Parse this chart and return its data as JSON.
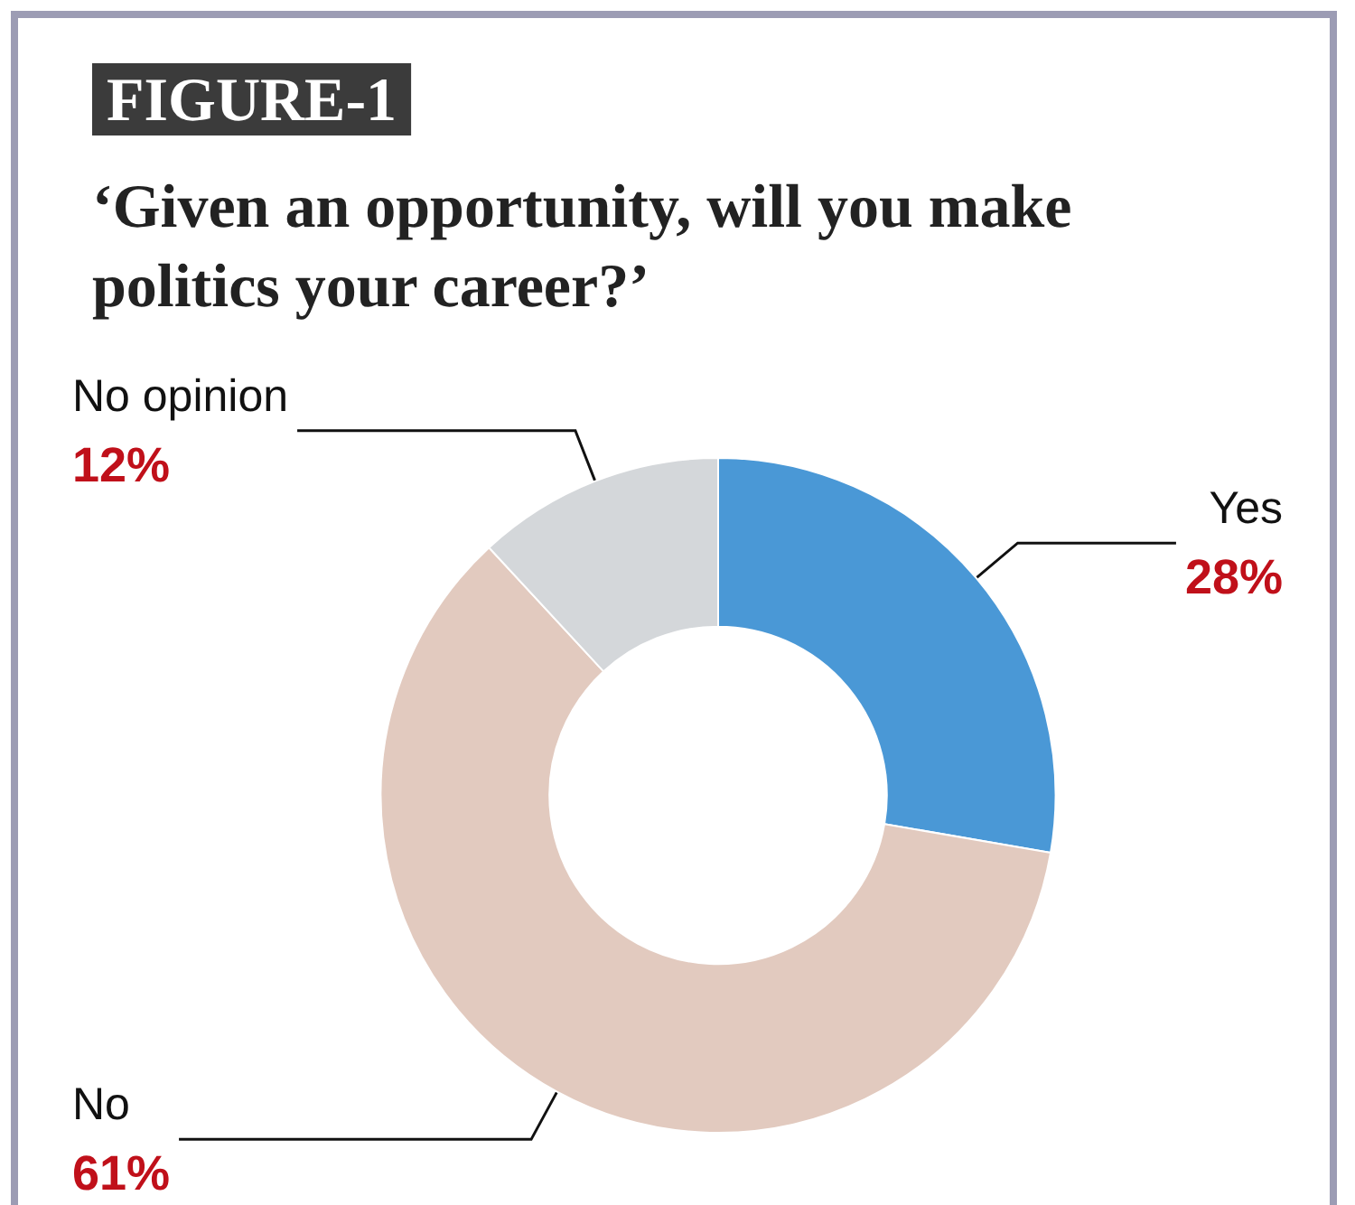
{
  "chart_data": {
    "type": "donut",
    "title": "FIGURE-1",
    "subtitle": "‘Given an opportunity, will you make politics your career?’",
    "categories": [
      "Yes",
      "No",
      "No opinion"
    ],
    "values": [
      28,
      61,
      12
    ],
    "value_labels": [
      "28%",
      "61%",
      "12%"
    ],
    "colors": [
      "#4a98d6",
      "#e2cabf",
      "#d4d7da"
    ],
    "legend": false
  }
}
